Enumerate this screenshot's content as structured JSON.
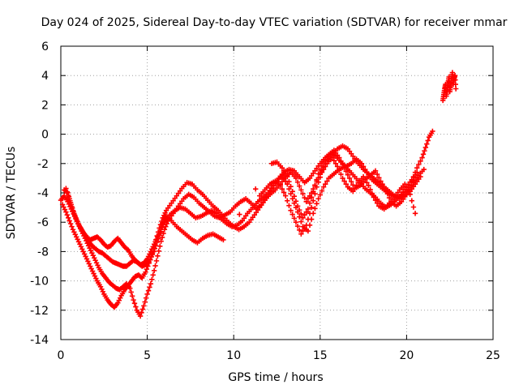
{
  "chart_data": {
    "type": "scatter",
    "title": "Day 024 of 2025, Sidereal Day-to-day VTEC variation (SDTVAR) for receiver mmar",
    "xlabel": "GPS time / hours",
    "ylabel": "SDTVAR / TECUs",
    "xlim": [
      0,
      25
    ],
    "ylim": [
      -14,
      6
    ],
    "xticks": [
      "0",
      "5",
      "10",
      "15",
      "20",
      "25"
    ],
    "yticks": [
      "-14",
      "-12",
      "-10",
      "-8",
      "-6",
      "-4",
      "-2",
      "0",
      "2",
      "4",
      "6"
    ],
    "xtick_values": [
      0,
      5,
      10,
      15,
      20,
      25
    ],
    "ytick_values": [
      -14,
      -12,
      -10,
      -8,
      -6,
      -4,
      -2,
      0,
      2,
      4,
      6
    ],
    "grid": true,
    "marker": "+",
    "color": "#ff0000",
    "series": [
      {
        "x": [
          0.0,
          0.2,
          0.4,
          0.6,
          0.8,
          1.0,
          1.2,
          1.4,
          1.6,
          1.8,
          2.0,
          2.2,
          2.4,
          2.6,
          2.8,
          3.0,
          3.2,
          3.4,
          3.6,
          3.8,
          4.0,
          4.2,
          4.4,
          4.6,
          4.8,
          5.0,
          5.2,
          5.4,
          5.6,
          5.8,
          6.0,
          6.3,
          6.6,
          6.9,
          7.2,
          7.5,
          7.8,
          8.1,
          8.4,
          8.7,
          9.0,
          9.3,
          9.6,
          9.9,
          10.2,
          10.5,
          10.8,
          11.1,
          11.4,
          11.7,
          12.0,
          12.3,
          12.6,
          12.9,
          13.2,
          13.5,
          13.8,
          14.1,
          14.4,
          14.7,
          15.0,
          15.3,
          15.6,
          15.9,
          16.2,
          16.5,
          16.8,
          17.1,
          17.4,
          17.7,
          18.0,
          18.3,
          18.6,
          18.9,
          19.2,
          19.5,
          19.8,
          20.1,
          20.4,
          20.7,
          21.0
        ],
        "y": [
          -4.5,
          -4.2,
          -4.6,
          -5.1,
          -5.6,
          -6.1,
          -6.5,
          -6.9,
          -7.3,
          -7.6,
          -7.8,
          -8.0,
          -8.1,
          -8.3,
          -8.5,
          -8.7,
          -8.8,
          -8.9,
          -9.0,
          -9.0,
          -8.8,
          -8.6,
          -8.7,
          -8.9,
          -8.8,
          -8.5,
          -8.0,
          -7.5,
          -7.0,
          -6.5,
          -6.0,
          -5.5,
          -5.2,
          -5.0,
          -5.1,
          -5.4,
          -5.7,
          -5.6,
          -5.4,
          -5.2,
          -5.4,
          -5.8,
          -6.1,
          -6.3,
          -6.2,
          -5.9,
          -5.4,
          -5.0,
          -4.6,
          -4.3,
          -4.0,
          -3.5,
          -3.0,
          -2.6,
          -2.4,
          -2.5,
          -2.9,
          -3.3,
          -3.0,
          -2.5,
          -2.0,
          -1.6,
          -1.3,
          -1.5,
          -1.9,
          -2.2,
          -2.0,
          -1.7,
          -2.0,
          -2.6,
          -3.1,
          -3.4,
          -3.7,
          -4.0,
          -4.2,
          -4.3,
          -4.1,
          -3.8,
          -3.3,
          -2.8,
          -2.4
        ]
      },
      {
        "x": [
          0.1,
          0.3,
          0.5,
          0.7,
          0.9,
          1.1,
          1.3,
          1.5,
          1.7,
          1.9,
          2.1,
          2.3,
          2.5,
          2.7,
          2.9,
          3.1,
          3.3,
          3.5,
          3.7,
          3.9,
          4.1,
          4.3,
          4.5,
          4.7,
          4.9,
          5.1,
          5.3,
          5.5,
          5.7,
          5.9,
          6.1,
          6.4,
          6.7,
          7.0,
          7.3,
          7.6,
          7.9,
          8.2,
          8.5,
          8.8,
          9.1,
          9.4,
          9.7,
          10.0,
          10.3,
          10.6,
          10.9,
          11.2,
          11.5,
          11.8,
          12.1,
          12.4,
          12.7,
          13.0,
          13.3,
          13.6,
          13.9,
          14.2,
          14.5,
          14.8,
          15.1,
          15.4,
          15.7,
          16.0,
          16.3,
          16.6,
          16.9,
          17.2,
          17.5,
          17.8,
          18.1,
          18.4,
          18.7,
          19.0,
          19.3,
          19.6,
          19.9,
          20.2,
          20.5,
          20.8
        ],
        "y": [
          -4.8,
          -5.3,
          -5.9,
          -6.5,
          -7.0,
          -7.5,
          -8.0,
          -8.5,
          -9.0,
          -9.5,
          -10.0,
          -10.4,
          -10.9,
          -11.3,
          -11.6,
          -11.8,
          -11.5,
          -11.0,
          -10.6,
          -10.3,
          -10.0,
          -9.7,
          -9.6,
          -9.8,
          -9.4,
          -8.8,
          -8.1,
          -7.2,
          -6.4,
          -5.7,
          -5.2,
          -4.7,
          -4.2,
          -3.7,
          -3.3,
          -3.4,
          -3.8,
          -4.1,
          -4.5,
          -4.9,
          -5.2,
          -5.6,
          -6.0,
          -6.3,
          -6.5,
          -6.3,
          -6.0,
          -5.5,
          -5.0,
          -4.5,
          -4.1,
          -3.8,
          -3.4,
          -2.9,
          -2.6,
          -3.0,
          -3.8,
          -4.6,
          -4.0,
          -3.2,
          -2.5,
          -1.8,
          -1.4,
          -1.0,
          -0.8,
          -1.0,
          -1.5,
          -2.0,
          -2.4,
          -2.7,
          -3.0,
          -3.3,
          -3.6,
          -3.9,
          -4.2,
          -4.4,
          -4.2,
          -3.9,
          -3.4,
          -2.9
        ]
      },
      {
        "x": [
          0.2,
          0.4,
          0.6,
          0.8,
          1.0,
          1.2,
          1.4,
          1.6,
          1.8,
          2.0,
          2.2,
          2.4,
          2.6,
          2.8,
          3.0,
          3.2,
          3.4,
          3.6,
          3.8,
          4.0,
          4.2,
          4.4,
          4.6,
          4.8,
          5.0,
          5.2,
          5.4,
          5.6,
          5.8,
          6.0,
          6.2,
          6.5,
          6.8,
          7.1,
          7.4,
          7.7,
          8.0,
          8.3,
          8.6,
          8.9,
          9.2,
          9.5,
          9.8,
          10.1,
          10.4,
          10.7,
          11.0,
          11.3,
          11.6,
          11.9,
          12.2,
          12.5,
          12.8,
          13.1,
          13.4,
          13.7,
          14.0,
          14.3,
          14.6,
          14.9,
          15.2,
          15.5,
          15.8,
          16.1,
          16.4,
          16.7,
          17.0,
          17.3,
          17.6,
          17.9,
          18.2,
          18.5,
          18.8,
          19.1,
          19.4,
          19.7,
          20.0,
          20.3,
          20.6
        ],
        "y": [
          -3.8,
          -4.0,
          -4.8,
          -5.5,
          -6.1,
          -6.6,
          -7.1,
          -7.6,
          -8.1,
          -8.6,
          -9.1,
          -9.5,
          -9.8,
          -10.1,
          -10.3,
          -10.5,
          -10.6,
          -10.4,
          -10.2,
          -10.5,
          -11.3,
          -12.0,
          -12.4,
          -11.7,
          -10.9,
          -10.2,
          -9.3,
          -8.3,
          -7.3,
          -6.5,
          -5.9,
          -5.4,
          -4.9,
          -4.4,
          -4.1,
          -4.3,
          -4.7,
          -5.0,
          -5.3,
          -5.6,
          -5.7,
          -5.5,
          -5.3,
          -4.9,
          -4.6,
          -4.4,
          -4.7,
          -5.1,
          -4.8,
          -4.3,
          -3.7,
          -3.2,
          -2.8,
          -3.4,
          -4.4,
          -5.3,
          -6.3,
          -6.6,
          -5.4,
          -4.4,
          -3.6,
          -3.0,
          -2.7,
          -2.4,
          -2.2,
          -2.5,
          -2.9,
          -3.3,
          -3.7,
          -4.0,
          -4.3,
          -4.7,
          -5.0,
          -4.8,
          -4.5,
          -4.1,
          -3.6,
          -3.1,
          -2.6
        ]
      },
      {
        "x": [
          0.3,
          0.5,
          0.7,
          0.9,
          1.1,
          1.3,
          1.5,
          1.7,
          1.9,
          2.1,
          2.3,
          2.5,
          2.7,
          2.9,
          3.1,
          3.3,
          3.5,
          3.7,
          3.9,
          4.1,
          4.3,
          4.5,
          4.7,
          4.9,
          5.1,
          5.3,
          5.5,
          5.7,
          5.9,
          6.1,
          6.4,
          6.7,
          7.0,
          7.3,
          7.6,
          7.9,
          8.2,
          8.5,
          8.8,
          9.1,
          9.4,
          12.2,
          12.5,
          12.8,
          13.1,
          13.4,
          13.7,
          14.0,
          14.3,
          14.6,
          14.9,
          15.2,
          15.5,
          15.8,
          16.1,
          16.4,
          16.7,
          17.0,
          17.3,
          17.6,
          17.9,
          18.2,
          18.5,
          18.8,
          19.1,
          19.4,
          19.7,
          20.0,
          20.3,
          20.6,
          20.9,
          21.1,
          21.3,
          21.5
        ],
        "y": [
          -3.7,
          -4.4,
          -5.2,
          -5.8,
          -6.3,
          -6.7,
          -7.0,
          -7.2,
          -7.1,
          -7.0,
          -7.2,
          -7.5,
          -7.7,
          -7.6,
          -7.3,
          -7.1,
          -7.4,
          -7.7,
          -7.9,
          -8.3,
          -8.6,
          -8.8,
          -9.0,
          -8.9,
          -8.7,
          -8.2,
          -7.6,
          -6.9,
          -6.1,
          -5.6,
          -5.9,
          -6.3,
          -6.6,
          -6.9,
          -7.2,
          -7.4,
          -7.1,
          -6.9,
          -6.8,
          -7.0,
          -7.2,
          -2.0,
          -1.9,
          -2.3,
          -2.9,
          -3.9,
          -4.9,
          -5.7,
          -5.1,
          -3.9,
          -2.7,
          -1.9,
          -1.4,
          -1.1,
          -1.6,
          -2.3,
          -3.0,
          -3.7,
          -3.5,
          -3.1,
          -2.8,
          -2.5,
          -3.2,
          -3.8,
          -4.6,
          -4.9,
          -4.6,
          -4.1,
          -3.2,
          -2.3,
          -1.6,
          -0.9,
          -0.2,
          0.2
        ]
      },
      {
        "x": [
          11.5,
          11.8,
          12.1,
          12.4,
          12.7,
          13.0,
          13.3,
          13.6,
          13.9,
          14.2,
          14.5,
          14.8,
          15.1,
          15.4,
          15.7,
          16.0,
          16.3,
          16.6,
          16.9,
          17.2,
          17.5,
          17.8,
          18.1,
          18.4,
          18.7,
          19.0,
          19.3,
          19.6,
          19.9,
          20.2,
          20.5
        ],
        "y": [
          -4.2,
          -3.8,
          -3.4,
          -3.2,
          -3.5,
          -4.2,
          -5.2,
          -6.0,
          -6.8,
          -6.2,
          -5.0,
          -3.6,
          -2.6,
          -2.0,
          -1.6,
          -2.2,
          -3.0,
          -3.6,
          -3.9,
          -3.3,
          -2.9,
          -3.5,
          -4.3,
          -4.9,
          -5.1,
          -4.7,
          -4.3,
          -3.8,
          -3.4,
          -4.1,
          -5.4
        ]
      },
      {
        "x": [
          22.1,
          22.15,
          22.2,
          22.25,
          22.3,
          22.35,
          22.4,
          22.45,
          22.5,
          22.55,
          22.6,
          22.65,
          22.7,
          22.75,
          22.8,
          22.85
        ],
        "y": [
          2.3,
          2.7,
          3.1,
          3.4,
          2.6,
          3.0,
          3.5,
          3.9,
          2.9,
          3.3,
          3.8,
          4.2,
          3.4,
          3.8,
          4.0,
          3.1
        ]
      }
    ]
  }
}
